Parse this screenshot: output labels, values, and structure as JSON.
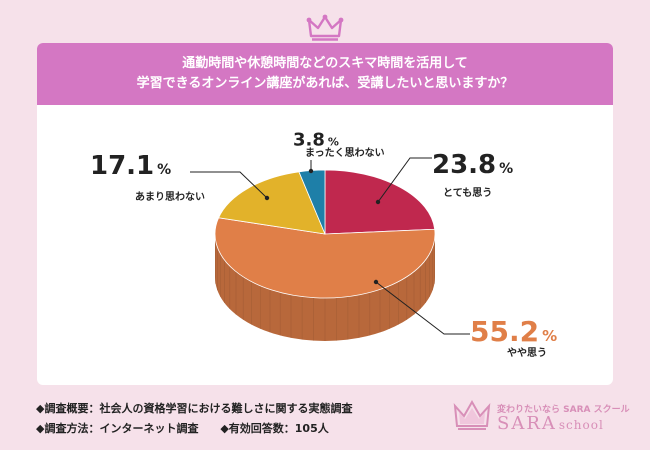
{
  "title": {
    "line1": "通勤時間や休憩時間などのスキマ時間を活用して",
    "line2": "学習できるオンライン講座があれば、受講したいと思いますか？"
  },
  "chart_data": {
    "type": "pie",
    "slices": [
      {
        "label": "とても思う",
        "value": 23.8,
        "display": "23.8",
        "color": "#c0284e"
      },
      {
        "label": "やや思う",
        "value": 55.2,
        "display": "55.2",
        "color": "#e07f48"
      },
      {
        "label": "あまり思わない",
        "value": 17.1,
        "display": "17.1",
        "color": "#e2b22a"
      },
      {
        "label": "まったく思わない",
        "value": 3.8,
        "display": "3.8",
        "color": "#1e7fa8"
      }
    ],
    "unit": "%",
    "highlight_color": "#e07f48"
  },
  "footnotes": {
    "line1": "◆調査概要：社会人の資格学習における難しさに関する実態調査",
    "method": "◆調査方法：インターネット調査",
    "respondents": "◆有効回答数：105人"
  },
  "brand": {
    "tagline": "変わりたいなら SARA スクール",
    "logo": "SARA",
    "logo_sub": "school",
    "color": "#d88fb8"
  }
}
